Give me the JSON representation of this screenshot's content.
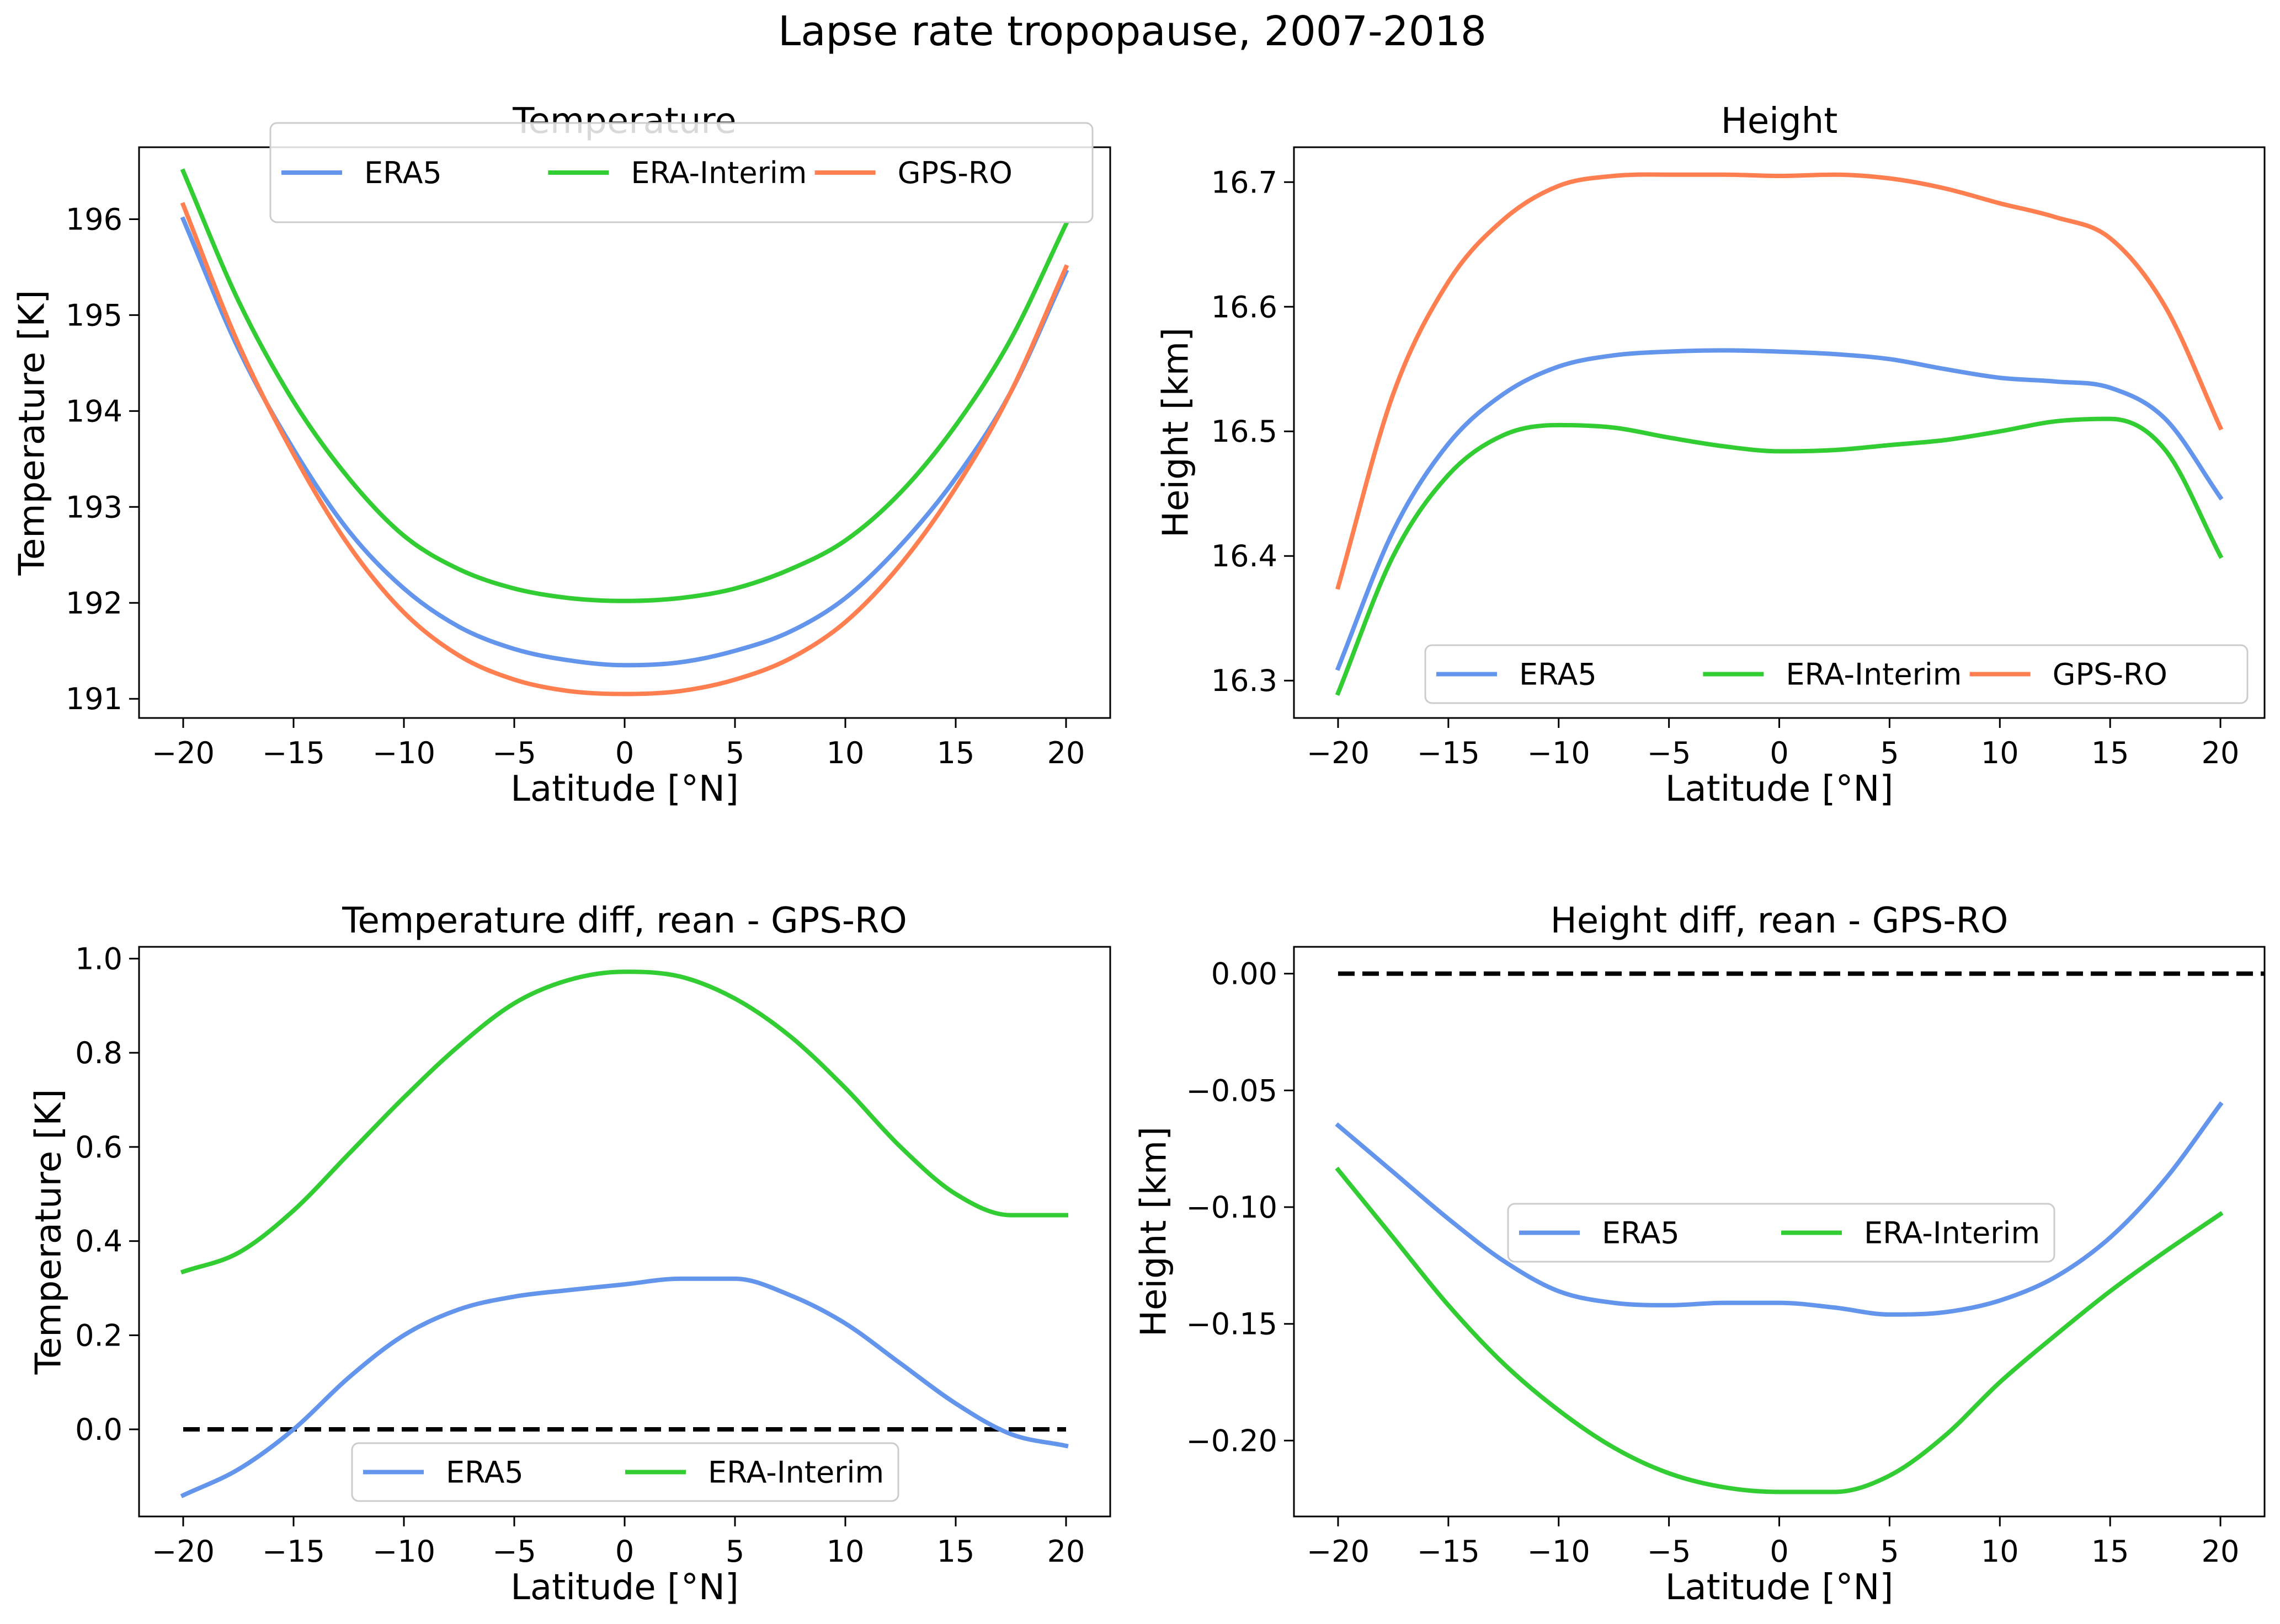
{
  "figure": {
    "title": "Lapse rate tropopause, 2007-2018"
  },
  "colors": {
    "ERA5": "#6495ED",
    "ERA-Interim": "#32CD32",
    "GPS-RO": "#FF7F50",
    "zero_line": "#000000"
  },
  "chart_data": [
    {
      "type": "line",
      "title": "Temperature",
      "xlabel": "Latitude [°N]",
      "ylabel": "Temperature [K]",
      "xlim": [
        -22,
        22
      ],
      "ylim": [
        190.8,
        196.75
      ],
      "xticks": [
        -20,
        -15,
        -10,
        -5,
        0,
        5,
        10,
        15,
        20
      ],
      "xtick_labels": [
        "−20",
        "−15",
        "−10",
        "−5",
        "0",
        "5",
        "10",
        "15",
        "20"
      ],
      "yticks": [
        191,
        192,
        193,
        194,
        195,
        196
      ],
      "ytick_labels": [
        "191",
        "192",
        "193",
        "194",
        "195",
        "196"
      ],
      "legend": {
        "placement": "top-right",
        "entries": [
          "ERA5",
          "ERA-Interim",
          "GPS-RO"
        ]
      },
      "grid": false,
      "x": [
        -20,
        -17.5,
        -15,
        -12.5,
        -10,
        -7.5,
        -5,
        -2.5,
        0,
        2.5,
        5,
        7.5,
        10,
        12.5,
        15,
        17.5,
        20
      ],
      "series": [
        {
          "name": "ERA5",
          "values": [
            196.0,
            194.65,
            193.6,
            192.75,
            192.15,
            191.75,
            191.52,
            191.4,
            191.35,
            191.38,
            191.5,
            191.7,
            192.05,
            192.6,
            193.3,
            194.2,
            195.45
          ]
        },
        {
          "name": "ERA-Interim",
          "values": [
            196.5,
            195.15,
            194.1,
            193.3,
            192.7,
            192.35,
            192.15,
            192.05,
            192.02,
            192.05,
            192.15,
            192.35,
            192.65,
            193.15,
            193.85,
            194.75,
            195.95
          ]
        },
        {
          "name": "GPS-RO",
          "values": [
            196.15,
            194.7,
            193.55,
            192.6,
            191.9,
            191.45,
            191.2,
            191.08,
            191.05,
            191.08,
            191.2,
            191.42,
            191.8,
            192.4,
            193.2,
            194.2,
            195.5
          ]
        }
      ]
    },
    {
      "type": "line",
      "title": "Height",
      "xlabel": "Latitude [°N]",
      "ylabel": "Height [km]",
      "xlim": [
        -22,
        22
      ],
      "ylim": [
        16.27,
        16.728
      ],
      "xticks": [
        -20,
        -15,
        -10,
        -5,
        0,
        5,
        10,
        15,
        20
      ],
      "xtick_labels": [
        "−20",
        "−15",
        "−10",
        "−5",
        "0",
        "5",
        "10",
        "15",
        "20"
      ],
      "yticks": [
        16.3,
        16.4,
        16.5,
        16.6,
        16.7
      ],
      "ytick_labels": [
        "16.3",
        "16.4",
        "16.5",
        "16.6",
        "16.7"
      ],
      "legend": {
        "placement": "bottom-right",
        "entries": [
          "ERA5",
          "ERA-Interim",
          "GPS-RO"
        ]
      },
      "grid": false,
      "x": [
        -20,
        -17.5,
        -15,
        -12.5,
        -10,
        -7.5,
        -5,
        -2.5,
        0,
        2.5,
        5,
        7.5,
        10,
        12.5,
        15,
        17.5,
        20
      ],
      "series": [
        {
          "name": "ERA5",
          "values": [
            16.31,
            16.42,
            16.49,
            16.53,
            16.552,
            16.561,
            16.564,
            16.565,
            16.564,
            16.562,
            16.558,
            16.55,
            16.543,
            16.54,
            16.535,
            16.51,
            16.447
          ]
        },
        {
          "name": "ERA-Interim",
          "values": [
            16.29,
            16.4,
            16.465,
            16.497,
            16.505,
            16.503,
            16.495,
            16.488,
            16.484,
            16.485,
            16.489,
            16.493,
            16.5,
            16.508,
            16.51,
            16.485,
            16.4
          ]
        },
        {
          "name": "GPS-RO",
          "values": [
            16.375,
            16.53,
            16.62,
            16.67,
            16.697,
            16.705,
            16.706,
            16.706,
            16.705,
            16.706,
            16.703,
            16.695,
            16.683,
            16.672,
            16.655,
            16.6,
            16.503
          ]
        }
      ]
    },
    {
      "type": "line",
      "title": "Temperature diff, rean - GPS-RO",
      "xlabel": "Latitude [°N]",
      "ylabel": "Temperature [K]",
      "xlim": [
        -22,
        22
      ],
      "ylim": [
        -0.185,
        1.025
      ],
      "xticks": [
        -20,
        -15,
        -10,
        -5,
        0,
        5,
        10,
        15,
        20
      ],
      "xtick_labels": [
        "−20",
        "−15",
        "−10",
        "−5",
        "0",
        "5",
        "10",
        "15",
        "20"
      ],
      "yticks": [
        0.0,
        0.2,
        0.4,
        0.6,
        0.8,
        1.0
      ],
      "ytick_labels": [
        "0.0",
        "0.2",
        "0.4",
        "0.6",
        "0.8",
        "1.0"
      ],
      "legend": {
        "placement": "lower-center",
        "entries": [
          "ERA5",
          "ERA-Interim"
        ]
      },
      "grid": false,
      "reference_line": {
        "y": 0.0,
        "x_range": [
          -20,
          20
        ],
        "style": "dashed"
      },
      "x": [
        -20,
        -17.5,
        -15,
        -12.5,
        -10,
        -7.5,
        -5,
        -2.5,
        0,
        2.5,
        5,
        7.5,
        10,
        12.5,
        15,
        17.5,
        20
      ],
      "series": [
        {
          "name": "ERA5",
          "values": [
            -0.14,
            -0.085,
            0.0,
            0.11,
            0.2,
            0.255,
            0.282,
            0.296,
            0.308,
            0.32,
            0.32,
            0.285,
            0.225,
            0.14,
            0.055,
            -0.01,
            -0.035
          ]
        },
        {
          "name": "ERA-Interim",
          "values": [
            0.335,
            0.375,
            0.465,
            0.585,
            0.705,
            0.815,
            0.905,
            0.955,
            0.972,
            0.962,
            0.915,
            0.835,
            0.725,
            0.6,
            0.5,
            0.455,
            0.455
          ]
        }
      ]
    },
    {
      "type": "line",
      "title": "Height diff, rean - GPS-RO",
      "xlabel": "Latitude [°N]",
      "ylabel": "Height [km]",
      "xlim": [
        -22,
        22
      ],
      "ylim": [
        -0.2325,
        0.0115
      ],
      "xticks": [
        -20,
        -15,
        -10,
        -5,
        0,
        5,
        10,
        15,
        20
      ],
      "xtick_labels": [
        "−20",
        "−15",
        "−10",
        "−5",
        "0",
        "5",
        "10",
        "15",
        "20"
      ],
      "yticks": [
        0.0,
        -0.05,
        -0.1,
        -0.15,
        -0.2
      ],
      "ytick_labels": [
        "0.00",
        "−0.05",
        "−0.10",
        "−0.15",
        "−0.20"
      ],
      "legend": {
        "placement": "center",
        "entries": [
          "ERA5",
          "ERA-Interim"
        ]
      },
      "grid": false,
      "reference_line": {
        "y": 0.0,
        "x_range": [
          -20,
          22
        ],
        "style": "dashed"
      },
      "x": [
        -20,
        -17.5,
        -15,
        -12.5,
        -10,
        -7.5,
        -5,
        -2.5,
        0,
        2.5,
        5,
        7.5,
        10,
        12.5,
        15,
        17.5,
        20
      ],
      "series": [
        {
          "name": "ERA5",
          "values": [
            -0.065,
            -0.085,
            -0.105,
            -0.123,
            -0.136,
            -0.141,
            -0.142,
            -0.141,
            -0.141,
            -0.143,
            -0.146,
            -0.145,
            -0.14,
            -0.13,
            -0.113,
            -0.088,
            -0.056
          ]
        },
        {
          "name": "ERA-Interim",
          "values": [
            -0.084,
            -0.113,
            -0.142,
            -0.167,
            -0.187,
            -0.203,
            -0.214,
            -0.22,
            -0.222,
            -0.222,
            -0.215,
            -0.198,
            -0.175,
            -0.155,
            -0.136,
            -0.119,
            -0.103
          ]
        }
      ]
    }
  ]
}
